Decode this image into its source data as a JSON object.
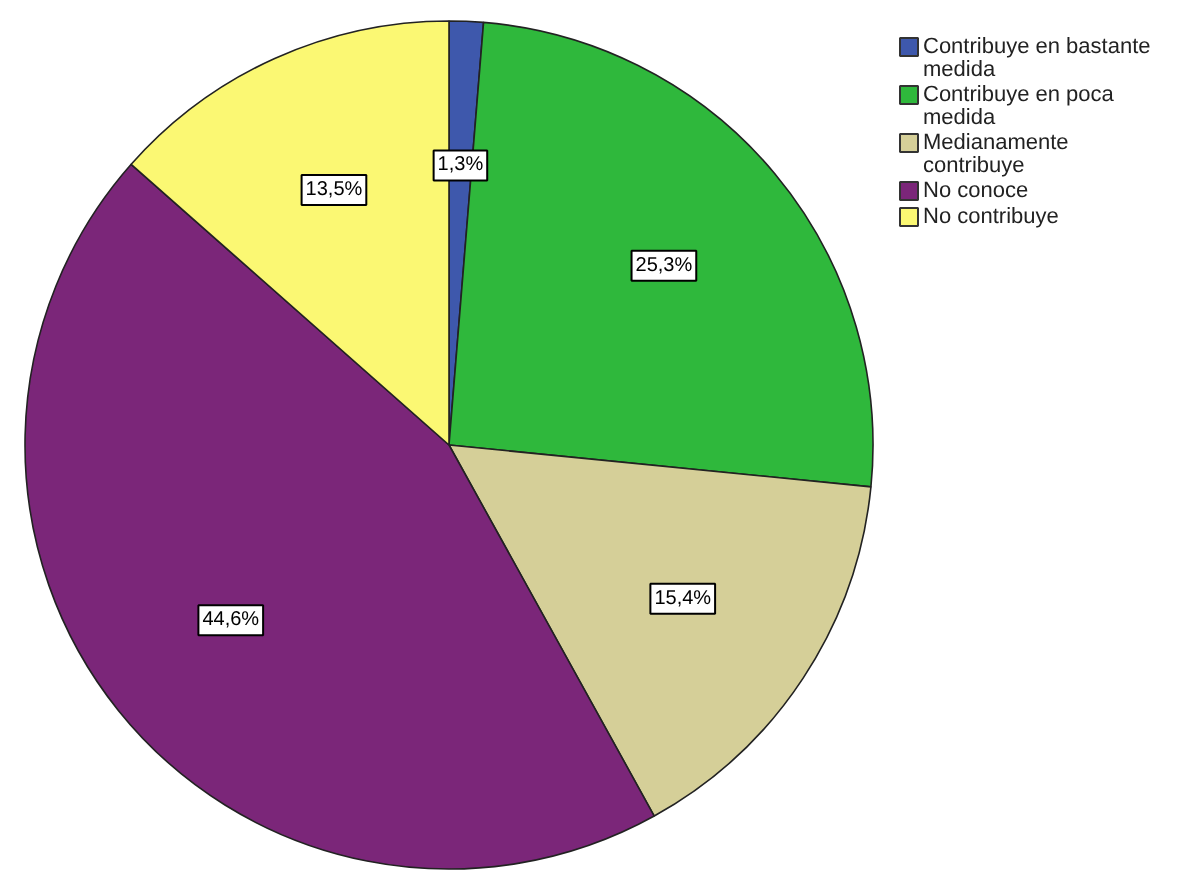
{
  "chart_data": {
    "type": "pie",
    "categories": [
      "Contribuye en bastante medida",
      "Contribuye en poca medida",
      "Medianamente contribuye",
      "No conoce",
      "No contribuye"
    ],
    "values": [
      1.3,
      25.3,
      15.4,
      44.6,
      13.5
    ],
    "colors": [
      "#3e58ac",
      "#2fb83c",
      "#d5cf98",
      "#7b2679",
      "#fbf873"
    ],
    "value_labels": [
      "1,3%",
      "25,3%",
      "15,4%",
      "44,6%",
      "13,5%"
    ],
    "legend": "top right"
  }
}
